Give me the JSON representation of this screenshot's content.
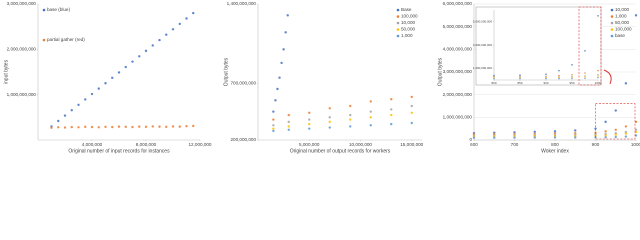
{
  "chart_data": [
    {
      "type": "scatter",
      "xlabel": "Original number of input records for instances",
      "ylabel": "input bytes",
      "xlim": [
        0,
        12000000
      ],
      "xticks": [
        {
          "value": 4000000,
          "label": "4,000,000"
        },
        {
          "value": 8000000,
          "label": "8,000,000"
        },
        {
          "value": 12000000,
          "label": "12,000,000"
        }
      ],
      "ylim": [
        0,
        3000000000
      ],
      "yticks": [
        {
          "value": 1000000000,
          "label": "1,000,000,000"
        },
        {
          "value": 2000000000,
          "label": "2,000,000,000"
        },
        {
          "value": 3000000000,
          "label": "3,000,000,000"
        }
      ],
      "grid": false,
      "legend": "top-left",
      "x": [
        1000000,
        1500000,
        2000000,
        2500000,
        3000000,
        3500000,
        4000000,
        4500000,
        5000000,
        5500000,
        6000000,
        6500000,
        7000000,
        7500000,
        8000000,
        8500000,
        9000000,
        9500000,
        10000000,
        10500000,
        11000000,
        11500000
      ],
      "series": [
        {
          "name": "base (blue)",
          "color": "#4472c4",
          "values": [
            300000000,
            419000000,
            538000000,
            657000000,
            776000000,
            895000000,
            1014000000,
            1133000000,
            1252000000,
            1371000000,
            1490000000,
            1609000000,
            1728000000,
            1847000000,
            1966000000,
            2085000000,
            2204000000,
            2323000000,
            2442000000,
            2561000000,
            2680000000,
            2800000000
          ]
        },
        {
          "name": "partial gather (red)",
          "color": "#ed7d31",
          "values": [
            270000000,
            280000000,
            275000000,
            285000000,
            280000000,
            290000000,
            285000000,
            280000000,
            290000000,
            285000000,
            295000000,
            290000000,
            285000000,
            295000000,
            290000000,
            300000000,
            295000000,
            290000000,
            300000000,
            295000000,
            305000000,
            310000000
          ]
        }
      ]
    },
    {
      "type": "scatter",
      "xlabel": "Original number of output records for workers",
      "ylabel": "Output bytes",
      "xlim": [
        0,
        16000000
      ],
      "xticks": [
        {
          "value": 5000000,
          "label": "5,000,000"
        },
        {
          "value": 10000000,
          "label": "10,000,000"
        },
        {
          "value": 15000000,
          "label": "15,000,000"
        }
      ],
      "ylim": [
        200000000,
        1400000000
      ],
      "yticks": [
        {
          "value": 200000000,
          "label": "200,000,000"
        },
        {
          "value": 700000000,
          "label": "700,000,000"
        },
        {
          "value": 1400000000,
          "label": "1,400,000,000"
        }
      ],
      "grid": false,
      "legend": "top-right",
      "series": [
        {
          "name": "Base",
          "color": "#4472c4",
          "x": [
            1500000,
            1700000,
            1900000,
            2100000,
            2300000,
            2500000,
            2700000,
            2900000
          ],
          "values": [
            450000000,
            550000000,
            650000000,
            750000000,
            880000000,
            1000000000,
            1150000000,
            1300000000
          ]
        },
        {
          "name": "100,000",
          "color": "#ed7d31",
          "x": [
            1500000,
            3000000,
            5000000,
            7000000,
            9000000,
            11000000,
            13000000,
            15000000
          ],
          "values": [
            380000000,
            420000000,
            440000000,
            480000000,
            500000000,
            540000000,
            560000000,
            580000000
          ]
        },
        {
          "name": "10,000",
          "color": "#a5a5a5",
          "x": [
            1500000,
            3000000,
            5000000,
            7000000,
            9000000,
            11000000,
            13000000,
            15000000
          ],
          "values": [
            330000000,
            360000000,
            380000000,
            400000000,
            420000000,
            450000000,
            470000000,
            500000000
          ]
        },
        {
          "name": "50,000",
          "color": "#ffc000",
          "x": [
            1500000,
            3000000,
            5000000,
            7000000,
            9000000,
            11000000,
            13000000,
            15000000
          ],
          "values": [
            300000000,
            320000000,
            340000000,
            360000000,
            380000000,
            400000000,
            420000000,
            440000000
          ]
        },
        {
          "name": "1,000",
          "color": "#5b9bd5",
          "x": [
            1500000,
            3000000,
            5000000,
            7000000,
            9000000,
            11000000,
            13000000,
            15000000
          ],
          "values": [
            280000000,
            290000000,
            300000000,
            310000000,
            320000000,
            330000000,
            340000000,
            350000000
          ]
        }
      ]
    },
    {
      "type": "scatter",
      "xlabel": "Woker index",
      "ylabel": "Output bytes",
      "xlim": [
        600,
        1000
      ],
      "xticks": [
        600,
        700,
        800,
        900,
        1000
      ],
      "ylim": [
        0,
        6000000000
      ],
      "yticks": [
        0,
        {
          "value": 1000000000,
          "label": "1,000,000,000"
        },
        {
          "value": 2000000000,
          "label": "2,000,000,000"
        },
        {
          "value": 3000000000,
          "label": "3,000,000,000"
        },
        {
          "value": 4000000000,
          "label": "4,000,000,000"
        },
        {
          "value": 5000000000,
          "label": "5,000,000,000"
        },
        {
          "value": 6000000000,
          "label": "6,000,000,000"
        }
      ],
      "grid": true,
      "legend": "top-right",
      "x": [
        600,
        650,
        700,
        750,
        800,
        850,
        900,
        925,
        950,
        975,
        1000
      ],
      "series": [
        {
          "name": "10,000",
          "color": "#4472c4",
          "values": [
            300000000,
            320000000,
            340000000,
            360000000,
            380000000,
            420000000,
            500000000,
            800000000,
            1300000000,
            2500000000,
            5500000000
          ]
        },
        {
          "name": "1,000",
          "color": "#ed7d31",
          "values": [
            250000000,
            260000000,
            270000000,
            280000000,
            290000000,
            300000000,
            320000000,
            380000000,
            450000000,
            600000000,
            800000000
          ]
        },
        {
          "name": "50,000",
          "color": "#a5a5a5",
          "values": [
            200000000,
            205000000,
            210000000,
            215000000,
            220000000,
            230000000,
            240000000,
            260000000,
            300000000,
            350000000,
            450000000
          ]
        },
        {
          "name": "100,000",
          "color": "#ffc000",
          "values": [
            150000000,
            155000000,
            160000000,
            165000000,
            170000000,
            175000000,
            185000000,
            200000000,
            230000000,
            280000000,
            350000000
          ]
        },
        {
          "name": "base",
          "color": "#5b9bd5",
          "values": [
            100000000,
            102000000,
            104000000,
            106000000,
            108000000,
            110000000,
            115000000,
            120000000,
            130000000,
            150000000,
            200000000
          ]
        }
      ],
      "inset": {
        "xlim": [
          800,
          1000
        ],
        "xticks": [
          800,
          850,
          900,
          950,
          1000
        ],
        "ylim": [
          0,
          6000000000
        ],
        "yticks": [
          {
            "value": 1000000000,
            "label": "1,000,000,000"
          },
          {
            "value": 3000000000,
            "label": "3,000,000,000"
          },
          {
            "value": 5000000000,
            "label": "5,000,000,000"
          }
        ]
      }
    }
  ]
}
